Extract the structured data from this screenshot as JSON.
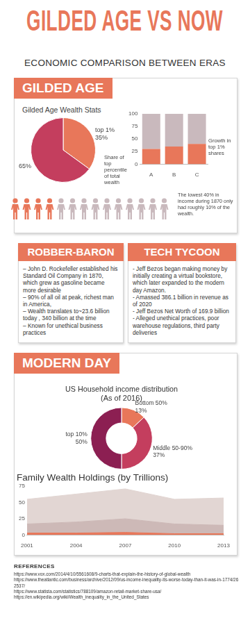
{
  "title": "GILDED AGE VS NOW",
  "subtitle": "ECONOMIC COMPARISON BETWEEN ERAS",
  "sections": {
    "gilded_age": "GILDED AGE",
    "modern_day": "MODERN DAY"
  },
  "panel_title": "Gilded Age Wealth Stats",
  "chart_data": [
    {
      "type": "pie",
      "categories": [
        "top 1%",
        null
      ],
      "values": [
        35,
        65
      ],
      "value_labels": [
        "35%",
        "65%"
      ],
      "colors": [
        "#e8775a",
        "#c43e5e"
      ],
      "annotation": "Share of top percentile of total wealth"
    },
    {
      "type": "bar",
      "categories": [
        "A",
        "B",
        "C"
      ],
      "series": [
        {
          "color": "#e8775a",
          "values": [
            30,
            35,
            40
          ]
        },
        {
          "color": "#c9b9bd",
          "values": [
            70,
            65,
            60
          ]
        }
      ],
      "stacked": true,
      "ylim": [
        0,
        100
      ],
      "yticks": [
        0,
        25,
        50,
        75,
        100
      ],
      "grid": false,
      "annotation": "Growth in top 1% shares"
    },
    {
      "type": "doughnut",
      "title": "US Household income distribution",
      "subtitle": "(As of 2016)",
      "categories": [
        "Bottom 50%",
        "Middle 50-90%",
        "top 10%"
      ],
      "values": [
        13,
        37,
        50
      ],
      "value_labels": [
        "13%",
        "37%",
        "50%"
      ],
      "colors": [
        "#e8775a",
        "#c43e5e",
        "#8c1f52"
      ]
    },
    {
      "type": "area",
      "title": "Family Wealth Holdings (by Trillions)",
      "categories": [
        "2001",
        "2004",
        "2007",
        "2010",
        "2013"
      ],
      "series": [
        {
          "color": "#e8775a",
          "values": [
            3,
            3,
            4,
            2,
            2
          ]
        },
        {
          "color": "#cdb9b7",
          "values": [
            14,
            17,
            21,
            15,
            13
          ]
        },
        {
          "color": "#e2d6d3",
          "values": [
            38,
            43,
            46,
            38,
            42
          ]
        }
      ],
      "stacked": true,
      "ylim": [
        0,
        75
      ],
      "yticks": [
        0,
        25,
        50,
        75
      ],
      "grid": false
    }
  ],
  "pictogram": {
    "highlighted": 4,
    "total": 14,
    "colors": [
      "#e8775a",
      "#c9b9bd"
    ],
    "text": "The lowest 40% in income during 1870 only had roughly 10% of the wealth."
  },
  "boxes": [
    {
      "title": "ROBBER-BARON",
      "items": [
        "– John D. Rockefeller established his Standard Oil Company in 1870, which grew as gasoline became more desirable",
        "– 90% of all oil at peak, richest man in America,",
        "– Wealth translates to~23.6 billion today , 340 billion at the time",
        "– Known for unethical business practices"
      ]
    },
    {
      "title": "TECH TYCOON",
      "items": [
        "- Jeff Bezos began making money by initially creating a virtual bookstore, which later expanded to the modern day Amazon.",
        "- Amassed 386.1 billion in revenue as of 2020",
        "- Jeff Bezos Net Worth of 169.9 billion",
        "- Alleged unethical practices, poor warehouse regulations, third party deliveries"
      ]
    }
  ],
  "references": {
    "title": "REFERENCES",
    "items": [
      "https://www.vox.com/2014/4/10/5561608/9-charts-that-explain-the-history-of-global-wealth",
      "https://www.theatlantic.com/business/archive/2012/09/us-income-inequality-its-worse-today-than-it-was-in-1774/262537/",
      "https://www.statista.com/statistics/788109/amazon-retail-market-share-usa/",
      "https://en.wikipedia.org/wiki/Wealth_inequality_in_the_United_States"
    ]
  }
}
